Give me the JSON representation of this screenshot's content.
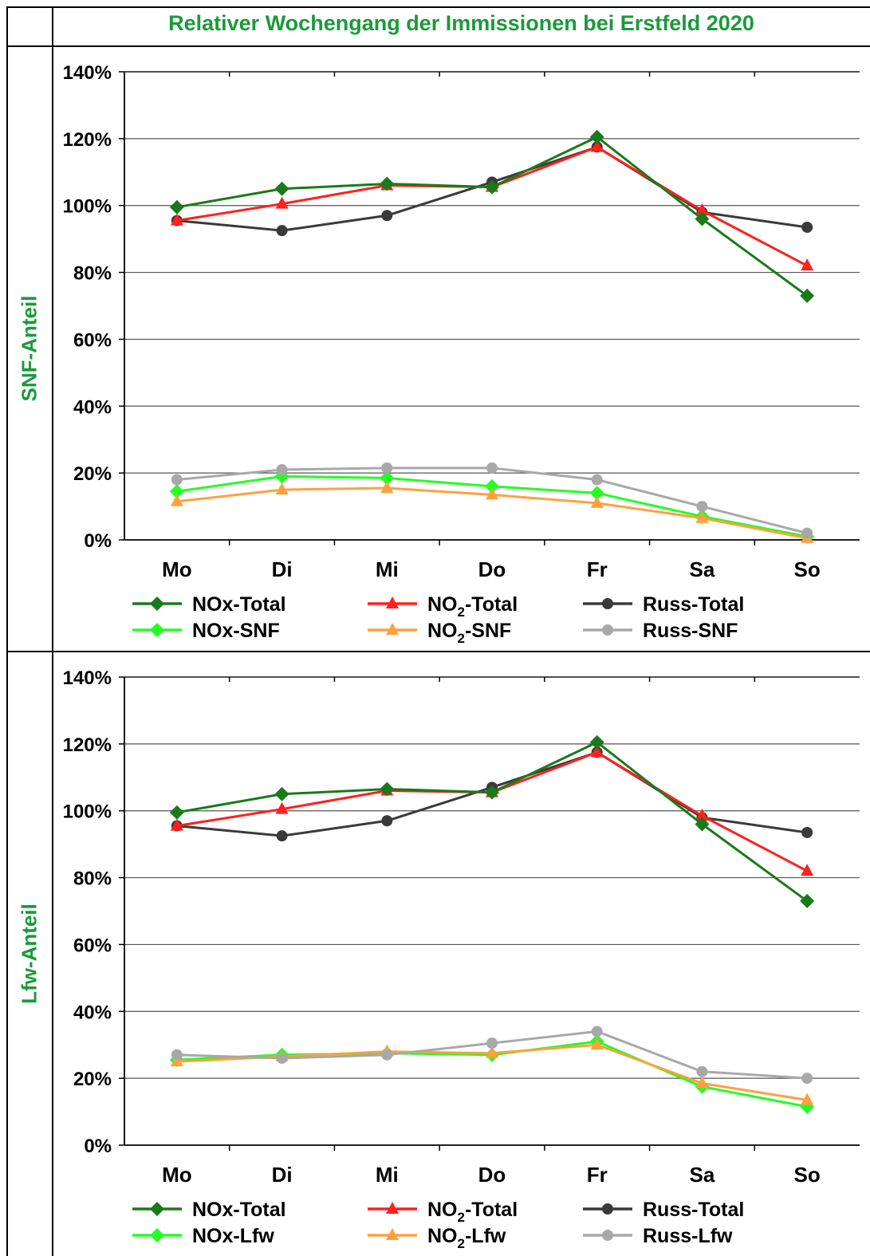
{
  "title": "Relativer Wochengang der Immissionen bei Erstfeld 2020",
  "colors": {
    "nox_total": "#1a7a1a",
    "nox_part": "#22ff22",
    "no2_total": "#ff2020",
    "no2_part": "#ffa040",
    "russ_total": "#3a3a3a",
    "russ_part": "#a8a8a8",
    "title_green": "#1a9a3a"
  },
  "chart_data": [
    {
      "type": "line",
      "row_label": "SNF-Anteil",
      "categories": [
        "Mo",
        "Di",
        "Mi",
        "Do",
        "Fr",
        "Sa",
        "So"
      ],
      "yticks": [
        "0%",
        "20%",
        "40%",
        "60%",
        "80%",
        "100%",
        "120%",
        "140%"
      ],
      "ylim": [
        0,
        140
      ],
      "series": [
        {
          "key": "nox_total",
          "name": "NOx-Total",
          "marker": "diamond",
          "values": [
            99.5,
            105,
            106.5,
            105.5,
            120.5,
            96,
            73
          ]
        },
        {
          "key": "no2_total",
          "name": "NO2-Total",
          "marker": "triangle",
          "values": [
            95.5,
            100.5,
            106,
            105.5,
            117.5,
            98.5,
            82
          ]
        },
        {
          "key": "russ_total",
          "name": "Russ-Total",
          "marker": "circle",
          "values": [
            95.5,
            92.5,
            97,
            107,
            117.5,
            98,
            93.5
          ]
        },
        {
          "key": "nox_part",
          "name": "NOx-SNF",
          "marker": "diamond",
          "values": [
            14.5,
            19,
            18.5,
            16,
            14,
            7,
            1
          ]
        },
        {
          "key": "no2_part",
          "name": "NO2-SNF",
          "marker": "triangle",
          "values": [
            11.5,
            15,
            15.5,
            13.5,
            11,
            6.5,
            0.5
          ]
        },
        {
          "key": "russ_part",
          "name": "Russ-SNF",
          "marker": "circle",
          "values": [
            18,
            21,
            21.5,
            21.5,
            18,
            10,
            2
          ]
        }
      ]
    },
    {
      "type": "line",
      "row_label": "Lfw-Anteil",
      "categories": [
        "Mo",
        "Di",
        "Mi",
        "Do",
        "Fr",
        "Sa",
        "So"
      ],
      "yticks": [
        "0%",
        "20%",
        "40%",
        "60%",
        "80%",
        "100%",
        "120%",
        "140%"
      ],
      "ylim": [
        0,
        140
      ],
      "series": [
        {
          "key": "nox_total",
          "name": "NOx-Total",
          "marker": "diamond",
          "values": [
            99.5,
            105,
            106.5,
            105.5,
            120.5,
            96,
            73
          ]
        },
        {
          "key": "no2_total",
          "name": "NO2-Total",
          "marker": "triangle",
          "values": [
            95.5,
            100.5,
            106,
            105.5,
            117.5,
            98.5,
            82
          ]
        },
        {
          "key": "russ_total",
          "name": "Russ-Total",
          "marker": "circle",
          "values": [
            95.5,
            92.5,
            97,
            107,
            117.5,
            98,
            93.5
          ]
        },
        {
          "key": "nox_part",
          "name": "NOx-Lfw",
          "marker": "diamond",
          "values": [
            25.5,
            27,
            27.5,
            27,
            31,
            17.5,
            11.5
          ]
        },
        {
          "key": "no2_part",
          "name": "NO2-Lfw",
          "marker": "triangle",
          "values": [
            25,
            26.5,
            28,
            27.5,
            30,
            18.5,
            13.5
          ]
        },
        {
          "key": "russ_part",
          "name": "Russ-Lfw",
          "marker": "circle",
          "values": [
            27,
            26,
            27,
            30.5,
            34,
            22,
            20
          ]
        }
      ]
    }
  ]
}
